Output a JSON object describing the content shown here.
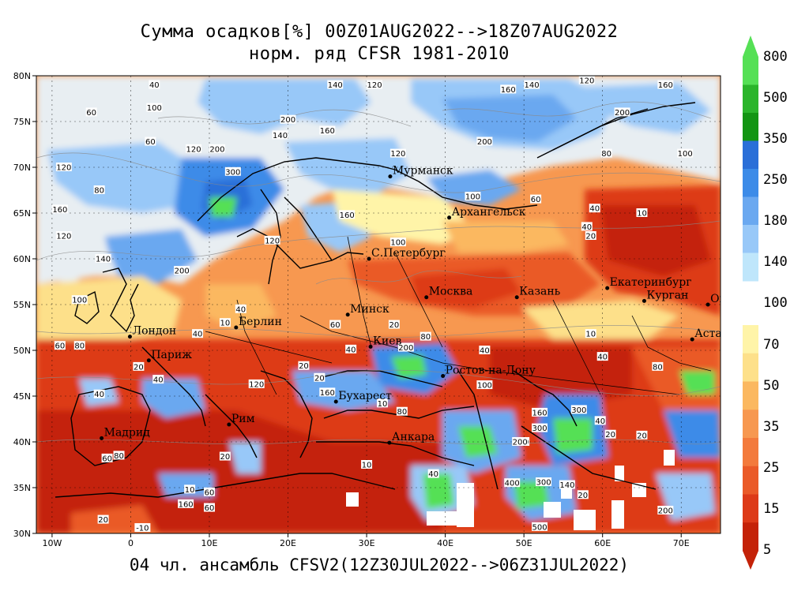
{
  "title_line1": "Сумма осадков[%] 00Z01AUG2022-->18Z07AUG2022",
  "title_line2": "норм. ряд CFSR 1981-2010",
  "footer": "04 чл. ансамбль CFSV2(12Z30JUL2022-->06Z31JUL2022)",
  "map": {
    "lon_range": [
      -12,
      75
    ],
    "lat_range": [
      30,
      80
    ],
    "x_ticks": [
      "10W",
      "0",
      "10E",
      "20E",
      "30E",
      "40E",
      "50E",
      "60E",
      "70E"
    ],
    "y_ticks": [
      "30N",
      "35N",
      "40N",
      "45N",
      "50N",
      "55N",
      "60N",
      "65N",
      "70N",
      "75N",
      "80N"
    ],
    "grid": "dotted"
  },
  "colorbar": {
    "labels": [
      "800",
      "500",
      "350",
      "250",
      "180",
      "140",
      "100",
      "70",
      "50",
      "35",
      "25",
      "15",
      "5"
    ],
    "colors_upper": [
      "#55e055",
      "#2bb52b",
      "#139513",
      "#2a6fd8",
      "#3c8be8",
      "#6aa8f0",
      "#98c8f8",
      "#bfe6fb"
    ],
    "colors_lower": [
      "#fff4a8",
      "#fde08a",
      "#fbb860",
      "#f79850",
      "#f37a3c",
      "#ea5a28",
      "#dd3a18",
      "#c42208"
    ]
  },
  "cities": [
    {
      "name": "Мурманск",
      "lon": 33,
      "lat": 69
    },
    {
      "name": "Архангельск",
      "lon": 40.5,
      "lat": 64.5
    },
    {
      "name": "С.Петербург",
      "lon": 30.3,
      "lat": 60
    },
    {
      "name": "Москва",
      "lon": 37.6,
      "lat": 55.8
    },
    {
      "name": "Казань",
      "lon": 49.1,
      "lat": 55.8
    },
    {
      "name": "Екатеринбург",
      "lon": 60.6,
      "lat": 56.8
    },
    {
      "name": "Курган",
      "lon": 65.3,
      "lat": 55.4
    },
    {
      "name": "Омск",
      "lon": 73.4,
      "lat": 55
    },
    {
      "name": "Астана",
      "lon": 71.4,
      "lat": 51.2
    },
    {
      "name": "Минск",
      "lon": 27.6,
      "lat": 53.9
    },
    {
      "name": "Берлин",
      "lon": 13.4,
      "lat": 52.5
    },
    {
      "name": "Лондон",
      "lon": -0.1,
      "lat": 51.5
    },
    {
      "name": "Париж",
      "lon": 2.3,
      "lat": 48.9
    },
    {
      "name": "Киев",
      "lon": 30.5,
      "lat": 50.4
    },
    {
      "name": "Ростов-на-Дону",
      "lon": 39.7,
      "lat": 47.2
    },
    {
      "name": "Бухарест",
      "lon": 26.1,
      "lat": 44.4
    },
    {
      "name": "Рим",
      "lon": 12.5,
      "lat": 41.9
    },
    {
      "name": "Мадрид",
      "lon": -3.7,
      "lat": 40.4
    },
    {
      "name": "Анкара",
      "lon": 32.9,
      "lat": 39.9
    }
  ],
  "contour_labels": [
    {
      "v": "40",
      "lon": 3,
      "lat": 79
    },
    {
      "v": "140",
      "lon": 26,
      "lat": 79
    },
    {
      "v": "120",
      "lon": 31,
      "lat": 79
    },
    {
      "v": "160",
      "lon": 48,
      "lat": 78.5
    },
    {
      "v": "140",
      "lon": 51,
      "lat": 79
    },
    {
      "v": "120",
      "lon": 58,
      "lat": 79.5
    },
    {
      "v": "160",
      "lon": 68,
      "lat": 79
    },
    {
      "v": "100",
      "lon": 3,
      "lat": 76.5
    },
    {
      "v": "60",
      "lon": -5,
      "lat": 76
    },
    {
      "v": "200",
      "lon": 20,
      "lat": 75.2
    },
    {
      "v": "200",
      "lon": 62.5,
      "lat": 76
    },
    {
      "v": "160",
      "lon": 25,
      "lat": 74
    },
    {
      "v": "140",
      "lon": 19,
      "lat": 73.5
    },
    {
      "v": "60",
      "lon": 2.5,
      "lat": 72.8
    },
    {
      "v": "120",
      "lon": 8,
      "lat": 72
    },
    {
      "v": "200",
      "lon": 11,
      "lat": 72
    },
    {
      "v": "200",
      "lon": 45,
      "lat": 72.8
    },
    {
      "v": "120",
      "lon": 34,
      "lat": 71.5
    },
    {
      "v": "120",
      "lon": -8.5,
      "lat": 70
    },
    {
      "v": "300",
      "lon": 13,
      "lat": 69.5
    },
    {
      "v": "80",
      "lon": -4,
      "lat": 67.5
    },
    {
      "v": "80",
      "lon": 60.5,
      "lat": 71.5
    },
    {
      "v": "100",
      "lon": 70.5,
      "lat": 71.5
    },
    {
      "v": "100",
      "lon": 43.5,
      "lat": 66.8
    },
    {
      "v": "160",
      "lon": -9,
      "lat": 65.4
    },
    {
      "v": "160",
      "lon": 27.5,
      "lat": 64.8
    },
    {
      "v": "60",
      "lon": 51.5,
      "lat": 66.5
    },
    {
      "v": "40",
      "lon": 59,
      "lat": 65.5
    },
    {
      "v": "10",
      "lon": 65,
      "lat": 65
    },
    {
      "v": "40",
      "lon": 58,
      "lat": 63.5
    },
    {
      "v": "20",
      "lon": 58.5,
      "lat": 62.5
    },
    {
      "v": "120",
      "lon": -8.5,
      "lat": 62.5
    },
    {
      "v": "120",
      "lon": 18,
      "lat": 62
    },
    {
      "v": "100",
      "lon": 34,
      "lat": 61.8
    },
    {
      "v": "140",
      "lon": -3.5,
      "lat": 60
    },
    {
      "v": "200",
      "lon": 6.5,
      "lat": 58.7
    },
    {
      "v": "100",
      "lon": -6.5,
      "lat": 55.5
    },
    {
      "v": "40",
      "lon": 14,
      "lat": 54.5
    },
    {
      "v": "10",
      "lon": 12,
      "lat": 53
    },
    {
      "v": "40",
      "lon": 8.5,
      "lat": 51.8
    },
    {
      "v": "60",
      "lon": -9,
      "lat": 50.5
    },
    {
      "v": "80",
      "lon": -6.5,
      "lat": 50.5
    },
    {
      "v": "60",
      "lon": 26,
      "lat": 52.8
    },
    {
      "v": "20",
      "lon": 33.5,
      "lat": 52.8
    },
    {
      "v": "80",
      "lon": 37.5,
      "lat": 51.5
    },
    {
      "v": "40",
      "lon": 28,
      "lat": 50.1
    },
    {
      "v": "200",
      "lon": 35,
      "lat": 50.3
    },
    {
      "v": "40",
      "lon": 45,
      "lat": 50
    },
    {
      "v": "10",
      "lon": 58.5,
      "lat": 51.8
    },
    {
      "v": "40",
      "lon": 60,
      "lat": 49.3
    },
    {
      "v": "80",
      "lon": 67,
      "lat": 48.2
    },
    {
      "v": "20",
      "lon": 1,
      "lat": 48.2
    },
    {
      "v": "40",
      "lon": 3.5,
      "lat": 46.8
    },
    {
      "v": "20",
      "lon": 22,
      "lat": 48.3
    },
    {
      "v": "20",
      "lon": 24,
      "lat": 47
    },
    {
      "v": "100",
      "lon": 45,
      "lat": 46.2
    },
    {
      "v": "40",
      "lon": -4,
      "lat": 45.2
    },
    {
      "v": "120",
      "lon": 16,
      "lat": 46.3
    },
    {
      "v": "160",
      "lon": 25,
      "lat": 45.4
    },
    {
      "v": "10",
      "lon": 32,
      "lat": 44.2
    },
    {
      "v": "80",
      "lon": 34.5,
      "lat": 43.3
    },
    {
      "v": "160",
      "lon": 52,
      "lat": 43.2
    },
    {
      "v": "300",
      "lon": 57,
      "lat": 43.5
    },
    {
      "v": "40",
      "lon": 59.7,
      "lat": 42.3
    },
    {
      "v": "60",
      "lon": 50,
      "lat": 40
    },
    {
      "v": "200",
      "lon": 49.5,
      "lat": 40
    },
    {
      "v": "300",
      "lon": 52,
      "lat": 41.5
    },
    {
      "v": "20",
      "lon": 61,
      "lat": 40.8
    },
    {
      "v": "20",
      "lon": 65,
      "lat": 40.7
    },
    {
      "v": "60",
      "lon": -3,
      "lat": 38.2
    },
    {
      "v": "80",
      "lon": -1.5,
      "lat": 38.5
    },
    {
      "v": "20",
      "lon": 12,
      "lat": 38.4
    },
    {
      "v": "10",
      "lon": 30,
      "lat": 37.5
    },
    {
      "v": "40",
      "lon": 38.5,
      "lat": 36.5
    },
    {
      "v": "400",
      "lon": 48.5,
      "lat": 35.5
    },
    {
      "v": "300",
      "lon": 52.5,
      "lat": 35.6
    },
    {
      "v": "140",
      "lon": 55.5,
      "lat": 35.3
    },
    {
      "v": "20",
      "lon": 57.5,
      "lat": 34.2
    },
    {
      "v": "10",
      "lon": 7.5,
      "lat": 34.8
    },
    {
      "v": "60",
      "lon": 10,
      "lat": 34.5
    },
    {
      "v": "160",
      "lon": 7,
      "lat": 33.2
    },
    {
      "v": "60",
      "lon": 10,
      "lat": 32.8
    },
    {
      "v": "200",
      "lon": 68,
      "lat": 32.5
    },
    {
      "v": "-10",
      "lon": 1.5,
      "lat": 30.6
    },
    {
      "v": "20",
      "lon": -3.5,
      "lat": 31.5
    },
    {
      "v": "500",
      "lon": 52,
      "lat": 30.7
    }
  ]
}
